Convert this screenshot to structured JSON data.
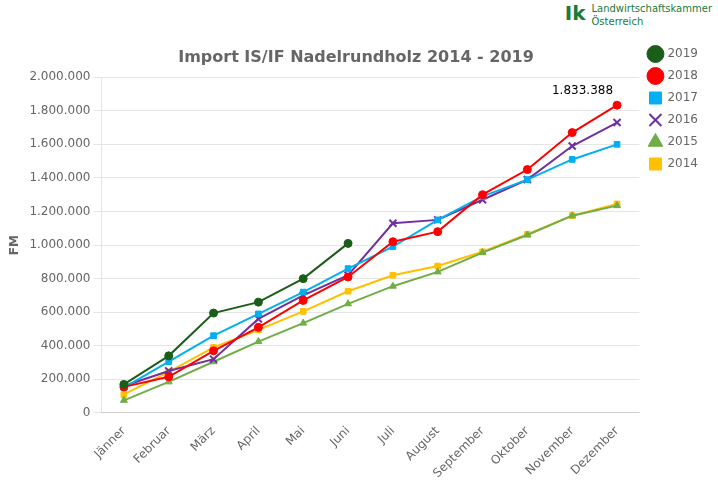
{
  "chart_data": {
    "type": "line",
    "title": "Import IS/IF Nadelrundholz 2014 - 2019",
    "y_label": "FM",
    "categories": [
      "Jänner",
      "Februar",
      "März",
      "April",
      "Mai",
      "Juni",
      "Juli",
      "August",
      "September",
      "Oktober",
      "November",
      "Dezember"
    ],
    "series": [
      {
        "name": "2019",
        "color": "#1a5e1a",
        "marker": "circle",
        "values": [
          170000,
          340000,
          595000,
          660000,
          800000,
          1010000,
          null,
          null,
          null,
          null,
          null,
          null
        ]
      },
      {
        "name": "2018",
        "color": "#ff0000",
        "marker": "circle",
        "values": [
          155000,
          215000,
          370000,
          510000,
          670000,
          810000,
          1020000,
          1080000,
          1300000,
          1450000,
          1670000,
          1833388
        ]
      },
      {
        "name": "2017",
        "color": "#00b0f0",
        "marker": "square",
        "values": [
          150000,
          305000,
          460000,
          590000,
          720000,
          860000,
          990000,
          1150000,
          1290000,
          1390000,
          1510000,
          1600000
        ]
      },
      {
        "name": "2016",
        "color": "#7030a0",
        "marker": "cross",
        "values": [
          160000,
          250000,
          320000,
          560000,
          700000,
          820000,
          1130000,
          1150000,
          1270000,
          1390000,
          1590000,
          1730000
        ]
      },
      {
        "name": "2015",
        "color": "#70ad47",
        "marker": "triangle",
        "values": [
          75000,
          185000,
          305000,
          425000,
          535000,
          650000,
          755000,
          840000,
          955000,
          1060000,
          1175000,
          1235000
        ]
      },
      {
        "name": "2014",
        "color": "#ffc000",
        "marker": "square",
        "values": [
          110000,
          245000,
          390000,
          495000,
          605000,
          725000,
          820000,
          875000,
          960000,
          1065000,
          1175000,
          1245000
        ]
      }
    ],
    "ylim": [
      0,
      2000000
    ],
    "yticks": [
      0,
      {
        "value": 200000,
        "label": "200.000"
      },
      {
        "value": 400000,
        "label": "400.000"
      },
      {
        "value": 600000,
        "label": "600.000"
      },
      {
        "value": 800000,
        "label": "800.000"
      },
      {
        "value": 1000000,
        "label": "1.000.000"
      },
      {
        "value": 1200000,
        "label": "1.200.000"
      },
      {
        "value": 1400000,
        "label": "1.400.000"
      },
      {
        "value": 1600000,
        "label": "1.600.000"
      },
      {
        "value": 1800000,
        "label": "1.800.000"
      },
      {
        "value": 2000000,
        "label": "2.000.000"
      }
    ],
    "grid": "y",
    "legend": "right",
    "annotations": [
      {
        "text": "1.833.388",
        "x": "Dezember",
        "y": 1833388
      },
      {
        "text": "Ik",
        "color": "#1a7a3a"
      },
      {
        "text": "Landwirtschaftskammer\nÖsterreich",
        "color": "#1a7a3a"
      }
    ]
  }
}
